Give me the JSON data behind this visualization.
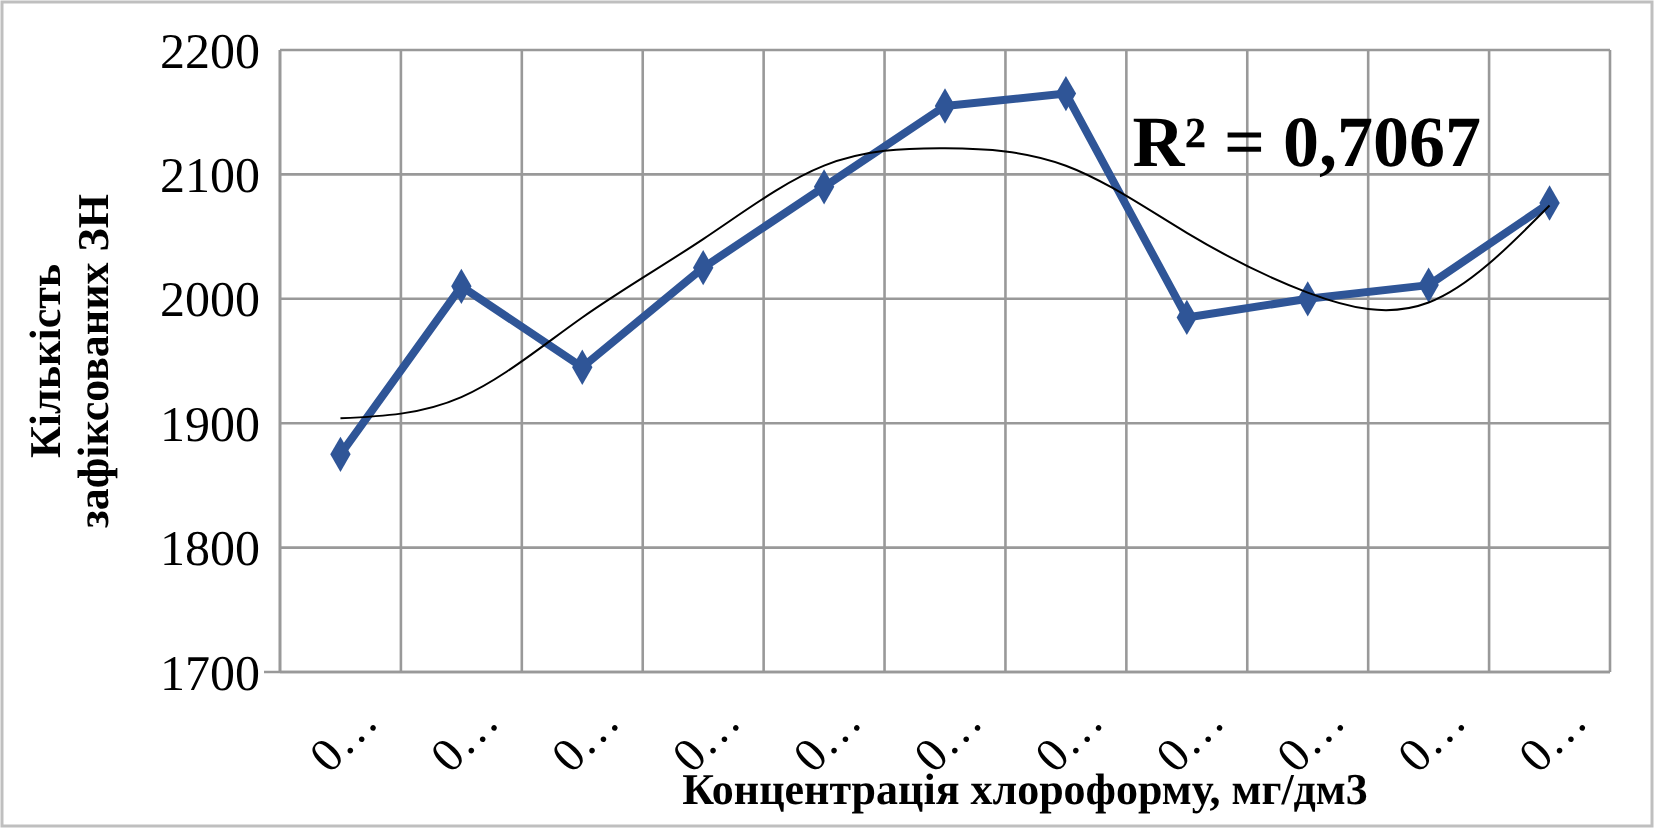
{
  "chart_data": {
    "type": "line",
    "xlabel": "Концентрація хлороформу, мг/дм3",
    "ylabel": "Кількість зафіксованих ЗН",
    "categories": [
      "0…",
      "0…",
      "0…",
      "0…",
      "0…",
      "0…",
      "0…",
      "0…",
      "0…",
      "0…",
      "0…"
    ],
    "series": [
      {
        "color": "#2f5597",
        "marker": "diamond",
        "values": [
          1875,
          2010,
          1945,
          2025,
          2090,
          2155,
          2165,
          1985,
          2000,
          2011,
          2077
        ]
      },
      {
        "type": "line",
        "color": "#000000",
        "marker": "none",
        "values": [
          1904,
          1921,
          1985,
          2048,
          2107,
          2121,
          2107,
          2053,
          2005,
          1997,
          2075
        ]
      }
    ],
    "ylim": [
      1700,
      2200
    ],
    "yticks": [
      1700,
      1800,
      1900,
      2000,
      2100,
      2200
    ],
    "grid": true,
    "annotations": [
      "R² = 0,7067"
    ]
  }
}
